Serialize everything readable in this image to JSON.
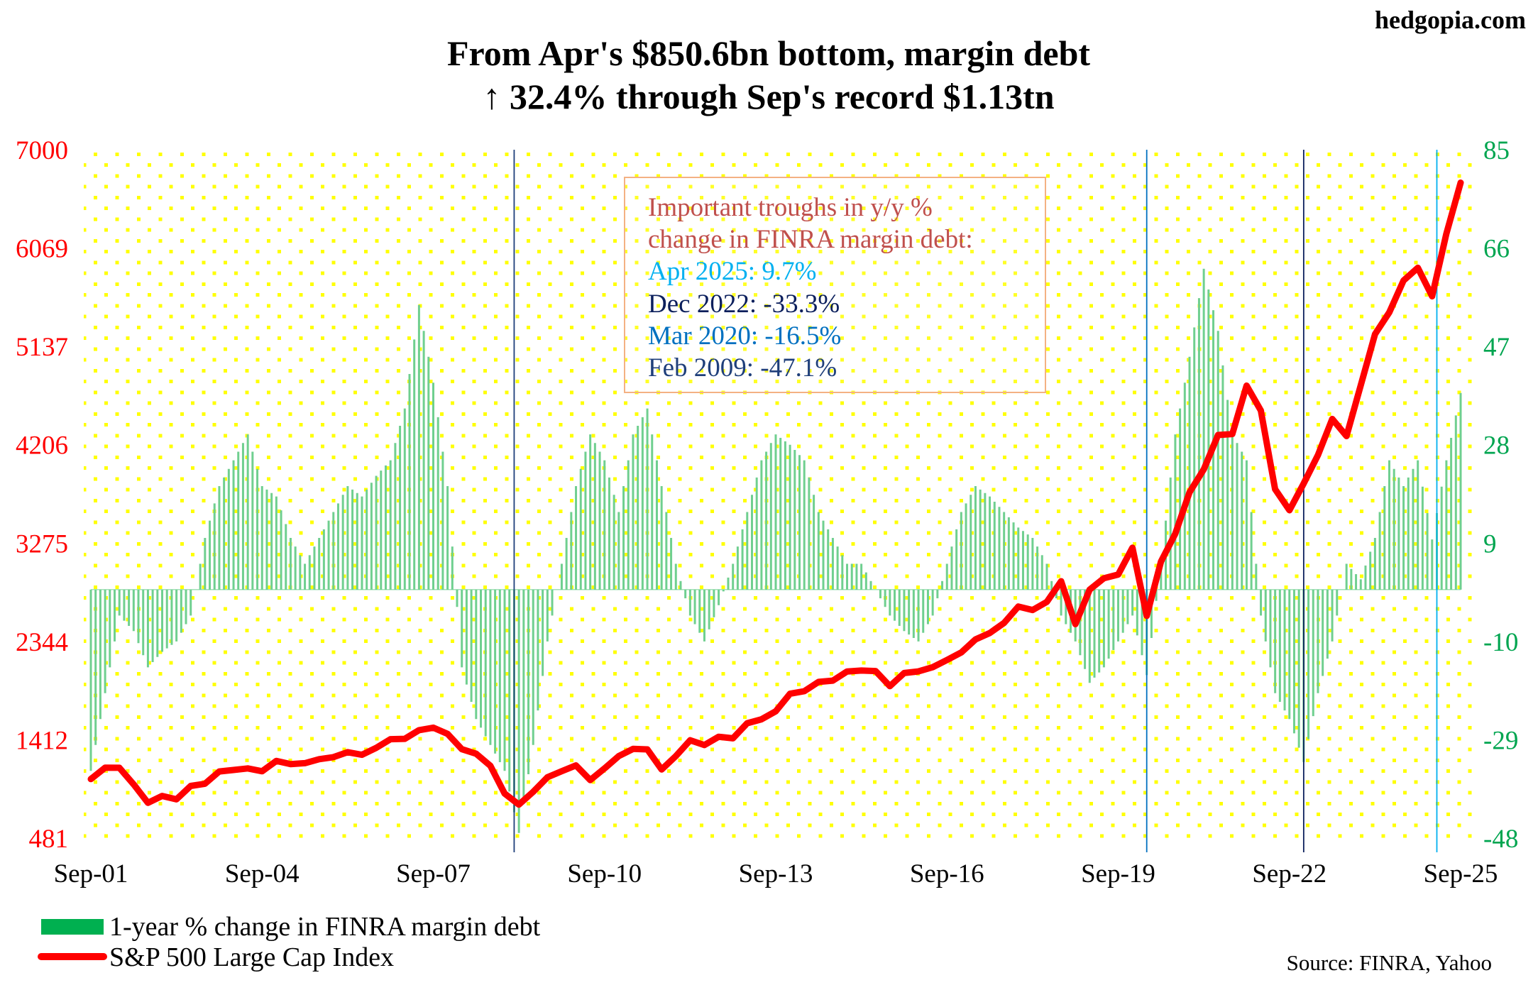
{
  "site": "hedgopia.com",
  "source": "Source: FINRA, Yahoo",
  "chart_data": {
    "type": "bar+line",
    "title": [
      "From Apr's $850.6bn bottom, margin debt",
      "↑ 32.4% through Sep's record $1.13tn"
    ],
    "x_start": "2001-09",
    "x_step_months": 3,
    "x_tick_labels": [
      "Sep-01",
      "Sep-04",
      "Sep-07",
      "Sep-10",
      "Sep-13",
      "Sep-16",
      "Sep-19",
      "Sep-22",
      "Sep-25"
    ],
    "left_axis": {
      "ylim": [
        481,
        7000
      ],
      "ticks": [
        "7000",
        "6069",
        "5137",
        "4206",
        "3275",
        "2344",
        "1412",
        "481"
      ],
      "color": "#ff0000"
    },
    "right_axis": {
      "ylim": [
        -48,
        85
      ],
      "ticks": [
        "85",
        "66",
        "47",
        "28",
        "9",
        "-10",
        "-29",
        "-48"
      ],
      "color": "#00a550"
    },
    "series": [
      {
        "name": "1-year % change in FINRA margin debt",
        "type": "bar",
        "axis": "right",
        "color": "#6fcf8f",
        "values": [
          -35,
          -20,
          -5,
          -8,
          -15,
          -12,
          -10,
          -5,
          10,
          20,
          25,
          30,
          20,
          18,
          10,
          5,
          10,
          15,
          20,
          18,
          22,
          25,
          35,
          55,
          40,
          20,
          -15,
          -25,
          -30,
          -35,
          -47,
          -30,
          -10,
          5,
          20,
          30,
          25,
          15,
          30,
          35,
          20,
          5,
          -5,
          -10,
          -3,
          5,
          15,
          25,
          30,
          28,
          25,
          15,
          10,
          5,
          5,
          0,
          -5,
          -8,
          -10,
          -5,
          5,
          15,
          20,
          18,
          15,
          12,
          10,
          5,
          -5,
          -10,
          -18,
          -15,
          -10,
          -5,
          -16.5,
          5,
          30,
          45,
          62,
          50,
          30,
          25,
          -5,
          -20,
          -25,
          -33.3,
          -20,
          -10,
          5,
          2,
          10,
          25,
          20,
          25,
          9.7,
          25,
          38
        ]
      },
      {
        "name": "S&P 500 Large Cap Index",
        "type": "line",
        "axis": "left",
        "color": "#ff0000",
        "values": [
          1040,
          1148,
          1147,
          990,
          815,
          880,
          848,
          975,
          996,
          1112,
          1126,
          1141,
          1114,
          1212,
          1181,
          1191,
          1228,
          1248,
          1295,
          1270,
          1336,
          1418,
          1421,
          1503,
          1527,
          1468,
          1323,
          1280,
          1166,
          903,
          798,
          919,
          1057,
          1115,
          1169,
          1031,
          1141,
          1258,
          1326,
          1321,
          1131,
          1258,
          1408,
          1362,
          1441,
          1426,
          1569,
          1606,
          1682,
          1848,
          1872,
          1960,
          1972,
          2059,
          2068,
          2063,
          1920,
          2044,
          2060,
          2099,
          2168,
          2239,
          2363,
          2423,
          2519,
          2674,
          2641,
          2718,
          2914,
          2507,
          2834,
          2942,
          2977,
          3231,
          2585,
          3100,
          3363,
          3756,
          3973,
          4298,
          4308,
          4766,
          4530,
          3785,
          3586,
          3840,
          4109,
          4450,
          4288,
          4770,
          5254,
          5460,
          5762,
          5882,
          5612,
          6205,
          6688
        ]
      }
    ],
    "markers": [
      {
        "date": "2009-02",
        "label": "Feb 2009: -47.1%",
        "color": "#1f3f7a"
      },
      {
        "date": "2020-03",
        "label": "Mar 2020: -16.5%",
        "color": "#0070c0"
      },
      {
        "date": "2022-12",
        "label": "Dec 2022: -33.3%",
        "color": "#0b1f5c"
      },
      {
        "date": "2025-04",
        "label": "Apr 2025: 9.7%",
        "color": "#00b0f0"
      }
    ],
    "annotation": {
      "heading": [
        "Important troughs in y/y %",
        "change in FINRA margin debt:"
      ],
      "heading_color": "#c0504d",
      "lines": [
        {
          "text": "Apr 2025: 9.7%",
          "color": "#00b0f0"
        },
        {
          "text": "Dec 2022: -33.3%",
          "color": "#0b1f5c"
        },
        {
          "text": "Mar 2020: -16.5%",
          "color": "#0070c0"
        },
        {
          "text": "Feb 2009: -47.1%",
          "color": "#1f3f7a"
        }
      ]
    },
    "legend": [
      "1-year % change in FINRA margin debt",
      "S&P 500 Large Cap Index"
    ],
    "legend_placement": "bottom-left",
    "grid": false
  }
}
